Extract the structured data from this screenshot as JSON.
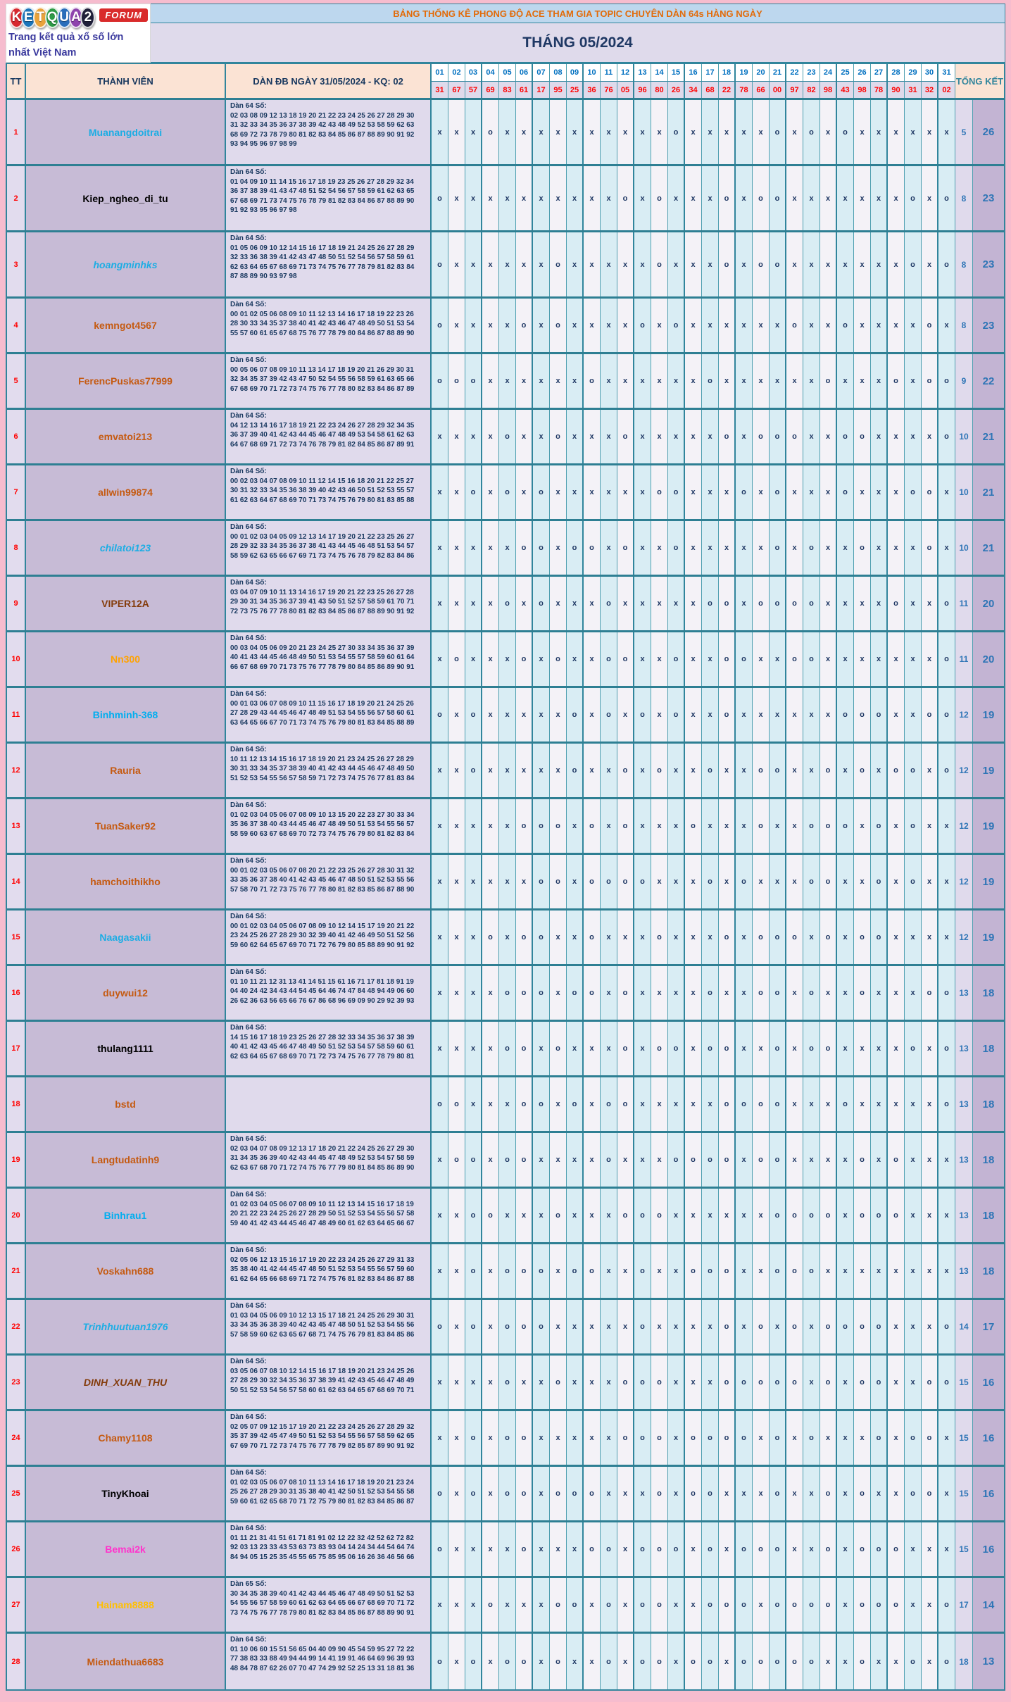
{
  "banner": {
    "title": "BẢNG THỐNG KÊ PHONG ĐỘ ACE THAM GIA TOPIC CHUYÊN DÀN 64s HÀNG NGÀY",
    "month": "THÁNG 05/2024"
  },
  "logo": {
    "letters": [
      {
        "ch": "K",
        "color": "#d7282f"
      },
      {
        "ch": "E",
        "color": "#1b75bb"
      },
      {
        "ch": "T",
        "color": "#e9a33b"
      },
      {
        "ch": "Q",
        "color": "#2e9b47"
      },
      {
        "ch": "U",
        "color": "#2a6ebb"
      },
      {
        "ch": "A",
        "color": "#8e44ad"
      },
      {
        "ch": "2",
        "color": "#20203a"
      }
    ],
    "forum": "FORUM",
    "tagline": "Trang kết quả xổ số lớn nhất Việt Nam"
  },
  "columns": {
    "tt": "TT",
    "member": "THÀNH VIÊN",
    "dan": "DÀN ĐB NGÀY 31/05/2024 - KQ: 02",
    "tongket": "TỔNG KẾT"
  },
  "days": [
    "01",
    "02",
    "03",
    "04",
    "05",
    "06",
    "07",
    "08",
    "09",
    "10",
    "11",
    "12",
    "13",
    "14",
    "15",
    "16",
    "17",
    "18",
    "19",
    "20",
    "21",
    "22",
    "23",
    "24",
    "25",
    "26",
    "27",
    "28",
    "29",
    "30",
    "31"
  ],
  "results": [
    "31",
    "67",
    "57",
    "69",
    "83",
    "61",
    "17",
    "95",
    "25",
    "36",
    "76",
    "05",
    "96",
    "80",
    "26",
    "34",
    "68",
    "22",
    "78",
    "66",
    "00",
    "97",
    "82",
    "98",
    "43",
    "98",
    "78",
    "90",
    "31",
    "32",
    "02"
  ],
  "rows": [
    {
      "tt": "1",
      "name": "Muanangdoitrai",
      "color": "#1cade4",
      "italic": false,
      "label": "Dàn 64 Số:",
      "lines": [
        "02 03 08 09 12 13 18 19 20 21 22 23 24 25 26 27 28 29 30",
        "31 32 33 34 35 36 37 38 39 42 43 48 49 52 53 58 59 62 63",
        "68 69 72 73 78 79 80 81 82 83 84 85 86 87 88 89 90 91 92",
        "93 94 95 96 97 98 99"
      ],
      "marks": "xxxoxxxxxxxxxxoxxxxxoxoxoxxxxxx",
      "tk1": "5",
      "tk2": "26"
    },
    {
      "tt": "2",
      "name": "Kiep_ngheo_di_tu",
      "color": "#000000",
      "italic": false,
      "label": "Dàn 64 Số:",
      "lines": [
        "01 04 09 10 11 14 15 16 17 18 19 23 25 26 27 28 29 32 34",
        "36 37 38 39 41 43 47 48 51 52 54 56 57 58 59 61 62 63 65",
        "67 68 69 71 73 74 75 76 78 79 81 82 83 84 86 87 88 89 90",
        "91 92 93 95 96 97 98"
      ],
      "marks": "oxxxxxxxxxxoxoxxxoxooxxxxxxxoxo",
      "tk1": "8",
      "tk2": "23"
    },
    {
      "tt": "3",
      "name": "hoangminhks",
      "color": "#1cade4",
      "italic": true,
      "label": "Dàn 64 Số:",
      "lines": [
        "01 05 06 09 10 12 14 15 16 17 18 19 21 24 25 26 27 28 29",
        "32 33 36 38 39 41 42 43 47 48 50 51 52 54 56 57 58 59 61",
        "62 63 64 65 67 68 69 71 73 74 75 76 77 78 79 81 82 83 84",
        "87 88 89 90 93 97 98"
      ],
      "marks": "oxxxxxxoxxxxxoxxxoxooxxxxxxxoxo",
      "tk1": "8",
      "tk2": "23"
    },
    {
      "tt": "4",
      "name": "kemngot4567",
      "color": "#c55a11",
      "italic": false,
      "label": "Dàn 64 Số:",
      "lines": [
        "00 01 02 05 06 08 09 10 11 12 13 14 16 17 18 19 22 23 26",
        "28 30 33 34 35 37 38 40 41 42 43 46 47 48 49 50 51 53 54",
        "55 57 60 61 65 67 68 75 76 77 78 79 80 84 86 87 88 89 90"
      ],
      "marks": "oxxxxoxoxxxxoxoxxxxxxoxxoxxxxox",
      "tk1": "8",
      "tk2": "23"
    },
    {
      "tt": "5",
      "name": "FerencPuskas77999",
      "color": "#c55a11",
      "italic": false,
      "label": "Dàn 64 Số:",
      "lines": [
        "00 05 06 07 08 09 10 11 13 14 17 18 19 20 21 26 29 30 31",
        "32 34 35 37 39 42 43 47 50 52 54 55 56 58 59 61 63 65 66",
        "67 68 69 70 71 72 73 74 75 76 77 78 80 82 83 84 86 87 89"
      ],
      "marks": "oooxxxxxxoxxxxxxoxxxxxxoxxxoxoo",
      "tk1": "9",
      "tk2": "22"
    },
    {
      "tt": "6",
      "name": "emvatoi213",
      "color": "#c55a11",
      "italic": false,
      "label": "Dàn 64 Số:",
      "lines": [
        "04 12 13 14 16 17 18 19 21 22 23 24 26 27 28 29 32 34 35",
        "36 37 39 40 41 42 43 44 45 46 47 48 49 53 54 58 61 62 63",
        "64 67 68 69 71 72 73 74 76 78 79 81 82 84 85 86 87 89 91"
      ],
      "marks": "xxxxoxxoxxxoxxxxxoxoooxxooxxxxo",
      "tk1": "10",
      "tk2": "21"
    },
    {
      "tt": "7",
      "name": "allwin99874",
      "color": "#c55a11",
      "italic": false,
      "label": "Dàn 64 Số:",
      "lines": [
        "00 02 03 04 07 08 09 10 11 12 14 15 16 18 20 21 22 25 27",
        "30 31 32 33 34 35 36 38 39 40 42 43 46 50 51 52 53 55 57",
        "61 62 63 64 67 68 69 70 71 73 74 75 76 79 80 81 83 85 88"
      ],
      "marks": "xxoxoxoxxxxxxooxxxoxoxxxoxxxoox",
      "tk1": "10",
      "tk2": "21"
    },
    {
      "tt": "8",
      "name": "chilatoi123",
      "color": "#1cade4",
      "italic": true,
      "label": "Dàn 64 Số:",
      "lines": [
        "00 01 02 03 04 05 09 12 13 14 17 19 20 21 22 23 25 26 27",
        "28 29 32 33 34 35 36 37 38 41 43 44 45 46 48 51 53 54 57",
        "58 59 62 63 65 66 67 69 71 73 74 75 76 78 79 82 83 84 86"
      ],
      "marks": "xxxxxooxooxoxxoxxxxxoxoxxoxxxox",
      "tk1": "10",
      "tk2": "21"
    },
    {
      "tt": "9",
      "name": "VIPER12A",
      "color": "#843c0c",
      "italic": false,
      "label": "Dàn 64 Số:",
      "lines": [
        "03 04 07 09 10 11 13 14 16 17 19 20 21 22 23 25 26 27 28",
        "29 30 31 34 35 36 37 39 41 43 50 51 52 57 58 59 61 70 71",
        "72 73 75 76 77 78 80 81 82 83 84 85 86 87 88 89 90 91 92"
      ],
      "marks": "xxxxoxoxxxoxxxxxooxooooxxxxoxxo",
      "tk1": "11",
      "tk2": "20"
    },
    {
      "tt": "10",
      "name": "Nn300",
      "color": "#ffa200",
      "italic": false,
      "label": "Dàn 64 Số:",
      "lines": [
        "00 03 04 05 06 09 20 21 23 24 25 27 30 33 34 35 36 37 39",
        "40 41 43 44 45 46 48 49 50 51 53 54 55 57 58 59 60 61 64",
        "66 67 68 69 70 71 73 75 76 77 78 79 80 84 85 86 89 90 91"
      ],
      "marks": "xoxxxoxoxxooxxoxxooxxooxxxxxxxo",
      "tk1": "11",
      "tk2": "20"
    },
    {
      "tt": "11",
      "name": "Binhminh-368",
      "color": "#00aeef",
      "italic": false,
      "label": "Dàn 64 Số:",
      "lines": [
        "00 01 03 06 07 08 09 10 11 15 16 17 18 19 20 21 24 25 26",
        "27 28 29 43 44 45 46 47 48 49 51 53 54 55 56 57 58 60 61",
        "63 64 65 66 67 70 71 73 74 75 76 79 80 81 83 84 85 88 89"
      ],
      "marks": "oxoxxxxxoxoxoxoxxoxxxxxxoooxxoo",
      "tk1": "12",
      "tk2": "19"
    },
    {
      "tt": "12",
      "name": "Rauria",
      "color": "#c55a11",
      "italic": false,
      "label": "Dàn 64 Số:",
      "lines": [
        "10 11 12 13 14 15 16 17 18 19 20 21 23 24 25 26 27 28 29",
        "30 31 33 34 35 37 38 39 40 41 42 43 44 45 46 47 48 49 50",
        "51 52 53 54 55 56 57 58 59 71 72 73 74 75 76 77 81 83 84"
      ],
      "marks": "xxoxxxxxoxxoxoxxoxxooxxoxoxooxo",
      "tk1": "12",
      "tk2": "19"
    },
    {
      "tt": "13",
      "name": "TuanSaker92",
      "color": "#c55a11",
      "italic": false,
      "label": "Dàn 64 Số:",
      "lines": [
        "01 02 03 04 05 06 07 08 09 10 13 15 20 22 23 27 30 33 34",
        "35 36 37 38 40 43 44 45 46 47 48 49 50 51 53 54 55 56 57",
        "58 59 60 63 67 68 69 70 72 73 74 75 76 79 80 81 82 83 84"
      ],
      "marks": "xxxxxoooxoxoxxxoxxxoxxoooxoxoxx",
      "tk1": "12",
      "tk2": "19"
    },
    {
      "tt": "14",
      "name": "hamchoithikho",
      "color": "#c55a11",
      "italic": false,
      "label": "Dàn 64 Số:",
      "lines": [
        "00 01 02 03 05 06 07 08 20 21 22 23 25 26 27 28 30 31 32",
        "33 35 36 37 38 40 41 42 43 45 46 47 48 50 51 52 53 55 56",
        "57 58 70 71 72 73 75 76 77 78 80 81 82 83 85 86 87 88 90"
      ],
      "marks": "xxxxxxooxooooxxxoxoxxxooxxoxoxx",
      "tk1": "12",
      "tk2": "19"
    },
    {
      "tt": "15",
      "name": "Naagasakii",
      "color": "#1cade4",
      "italic": false,
      "label": "Dàn 64 Số:",
      "lines": [
        "00 01 02 03 04 05 06 07 08 09 10 12 14 15 17 19 20 21 22",
        "23 24 25 26 27 28 29 30 32 39 40 41 42 46 49 50 51 52 56",
        "59 60 62 64 65 67 69 70 71 72 76 79 80 85 88 89 90 91 92"
      ],
      "marks": "xxxoxooxxoxxxoxxxoxoooxoxooxxxx",
      "tk1": "12",
      "tk2": "19"
    },
    {
      "tt": "16",
      "name": "duywui12",
      "color": "#c55a11",
      "italic": false,
      "label": "Dàn 64 Số:",
      "lines": [
        "01 10 11 21 12 31 13 41 14 51 15 61 16 71 17 81 18 91 19",
        "04 40 24 42 34 43 44 54 45 64 46 74 47 84 48 94 49 06 60",
        "26 62 36 63 56 65 66 76 67 86 68 96 69 09 90 29 92 39 93"
      ],
      "marks": "xxxxoooxooxoxxxxoxxooxoxxoxxxoo",
      "tk1": "13",
      "tk2": "18"
    },
    {
      "tt": "17",
      "name": "thulang1111",
      "color": "#000000",
      "italic": false,
      "label": "Dàn 64 Số:",
      "lines": [
        "14 15 16 17 18 19 23 25 26 27 28 32 33 34 35 36 37 38 39",
        "40 41 42 43 45 46 47 48 49 50 51 52 53 54 57 58 59 60 61",
        "62 63 64 65 67 68 69 70 71 72 73 74 75 76 77 78 79 80 81"
      ],
      "marks": "xxxxooxoxxxoxooxooxxoxooxxxxoxo",
      "tk1": "13",
      "tk2": "18"
    },
    {
      "tt": "18",
      "name": "bstd",
      "color": "#c55a11",
      "italic": false,
      "label": "",
      "lines": [],
      "marks": "ooxxxooxoxooxxxxxooooxxxoxxxxxo",
      "tk1": "13",
      "tk2": "18"
    },
    {
      "tt": "19",
      "name": "Langtudatinh9",
      "color": "#c55a11",
      "italic": false,
      "label": "Dàn 64 Số:",
      "lines": [
        "02 03 04 07 08 09 12 13 17 18 20 21 22 24 25 26 27 29 30",
        "31 34 35 36 39 40 42 43 44 45 47 48 49 52 53 54 57 58 59",
        "62 63 67 68 70 71 72 74 75 76 77 79 80 81 84 85 86 89 90"
      ],
      "marks": "xooxooxxxxoxxxooooxooxxxxoxoxxx",
      "tk1": "13",
      "tk2": "18"
    },
    {
      "tt": "20",
      "name": "Binhrau1",
      "color": "#00aeef",
      "italic": false,
      "label": "Dàn 64 Số:",
      "lines": [
        "01 02 03 04 05 06 07 08 09 10 11 12 13 14 15 16 17 18 19",
        "20 21 22 23 24 25 26 27 28 29 50 51 52 53 54 55 56 57 58",
        "59 40 41 42 43 44 45 46 47 48 49 60 61 62 63 64 65 66 67"
      ],
      "marks": "xxooxxxoxxxoooxxxxxxooooxoooxxx",
      "tk1": "13",
      "tk2": "18"
    },
    {
      "tt": "21",
      "name": "Voskahn688",
      "color": "#c55a11",
      "italic": false,
      "label": "Dàn 64 Số:",
      "lines": [
        "02 05 06 12 13 15 16 17 19 20 22 23 24 25 26 27 29 31 33",
        "35 38 40 41 42 44 45 47 48 50 51 52 53 54 55 56 57 59 60",
        "61 62 64 65 66 68 69 71 72 74 75 76 81 82 83 84 86 87 88"
      ],
      "marks": "xxoxoooxooxxoxxoooxxoooxxxxxxxx",
      "tk1": "13",
      "tk2": "18"
    },
    {
      "tt": "22",
      "name": "Trinhhuutuan1976",
      "color": "#1cade4",
      "italic": true,
      "label": "Dàn 64 Số:",
      "lines": [
        "01 03 04 05 06 09 10 12 13 15 17 18 21 24 25 26 29 30 31",
        "33 34 35 36 38 39 40 42 43 45 47 48 50 51 52 53 54 55 56",
        "57 58 59 60 62 63 65 67 68 71 74 75 76 79 81 83 84 85 86"
      ],
      "marks": "oxoxoooxxxxxoxxxxoxoxoxooooxxxo",
      "tk1": "14",
      "tk2": "17"
    },
    {
      "tt": "23",
      "name": "DINH_XUAN_THU",
      "color": "#843c0c",
      "italic": true,
      "label": "Dàn 64 Số:",
      "lines": [
        "03 05 06 07 08 10 12 14 15 16 17 18 19 20 21 23 24 25 26",
        "27 28 29 30 32 34 35 36 37 38 39 41 42 43 45 46 47 48 49",
        "50 51 52 53 54 56 57 58 60 61 62 63 64 65 67 68 69 70 71"
      ],
      "marks": "xxxxoxxoxxxoooxxxoooooxoxooxxoo",
      "tk1": "15",
      "tk2": "16"
    },
    {
      "tt": "24",
      "name": "Chamy1108",
      "color": "#c55a11",
      "italic": false,
      "label": "Dàn 64 Số:",
      "lines": [
        "02 05 07 09 12 15 17 19 20 21 22 23 24 25 26 27 28 29 32",
        "35 37 39 42 45 47 49 50 51 52 53 54 55 56 57 58 59 62 65",
        "67 69 70 71 72 73 74 75 76 77 78 79 82 85 87 89 90 91 92"
      ],
      "marks": "xxoxooxxxxxoooxoooox oxoxxxoxoox",
      "tk1": "15",
      "tk2": "16"
    },
    {
      "tt": "25",
      "name": "TinyKhoai",
      "color": "#000000",
      "italic": false,
      "label": "Dàn 64 Số:",
      "lines": [
        "01 02 03 05 06 07 08 10 11 13 14 16 17 18 19 20 21 23 24",
        "25 26 27 28 29 30 31 35 38 40 41 42 50 51 52 53 54 55 58",
        "59 60 61 62 65 68 70 71 72 75 79 80 81 82 83 84 85 86 87"
      ],
      "marks": "oxoxooxoooxxxoxooxxxoxxoxoxxoox",
      "tk1": "15",
      "tk2": "16"
    },
    {
      "tt": "26",
      "name": "Bemai2k",
      "color": "#ff33cc",
      "italic": false,
      "label": "Dàn 64 Số:",
      "lines": [
        "01 11 21 31 41 51 61 71 81 91 02 12 22 32 42 52 62 72 82",
        "92 03 13 23 33 43 53 63 73 83 93 04 14 24 34 44 54 64 74",
        "84 94 05 15 25 35 45 55 65 75 85 95 06 16 26 36 46 56 66"
      ],
      "marks": "oxxxxoxxxooxoooxoxoooxxoxoooxxx",
      "tk1": "15",
      "tk2": "16"
    },
    {
      "tt": "27",
      "name": "Hainam8888",
      "color": "#ffc000",
      "italic": false,
      "label": "Dàn 65 Số:",
      "lines": [
        "30 34 35 38 39 40 41 42 43 44 45 46 47 48 49 50 51 52 53",
        "54 55 56 57 58 59 60 61 62 63 64 65 66 67 68 69 70 71 72",
        "73 74 75 76 77 78 79 80 81 82 83 84 85 86 87 88 89 90 91"
      ],
      "marks": "xxxoxxxooxoxooxxoooxooooxoooxxo",
      "tk1": "17",
      "tk2": "14"
    },
    {
      "tt": "28",
      "name": "Miendathua6683",
      "color": "#c55a11",
      "italic": false,
      "label": "Dàn 64 Số:",
      "lines": [
        "01 10 06 60 15 51 56 65 04 40 09 90 45 54 59 95 27 72 22",
        "77 38 83 33 88 49 94 44 99 14 41 19 91 46 64 69 96 39 93",
        "48 84 78 87 62 26 07 70 47 74 29 92 52 25 13 31 18 81 36"
      ],
      "marks": "oxoxooxoxxoxooxooxoooooxxoxxoxo",
      "tk1": "18",
      "tk2": "13"
    }
  ]
}
